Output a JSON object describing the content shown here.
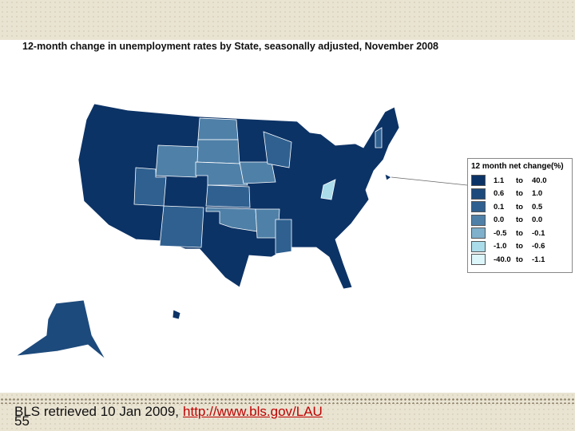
{
  "header": {
    "title": "12-month change in unemployment rates by State, seasonally adjusted, November 2008"
  },
  "legend": {
    "title": "12 month net change(%)",
    "separator": "to",
    "rows": [
      {
        "color": "#0c3366",
        "from": "1.1",
        "to": "40.0"
      },
      {
        "color": "#1d4a7c",
        "from": "0.6",
        "to": "1.0"
      },
      {
        "color": "#2f6090",
        "from": "0.1",
        "to": "0.5"
      },
      {
        "color": "#4f80a8",
        "from": "0.0",
        "to": "0.0"
      },
      {
        "color": "#7fb0cc",
        "from": "-0.5",
        "to": "-0.1"
      },
      {
        "color": "#aadcea",
        "from": "-1.0",
        "to": "-0.6"
      },
      {
        "color": "#dcf6fa",
        "from": "-40.0",
        "to": "-1.1"
      }
    ]
  },
  "footer": {
    "source": "BLS retrieved 10 Jan 2009,",
    "link": "http://www.bls.gov/LAU",
    "page_number": "55"
  }
}
